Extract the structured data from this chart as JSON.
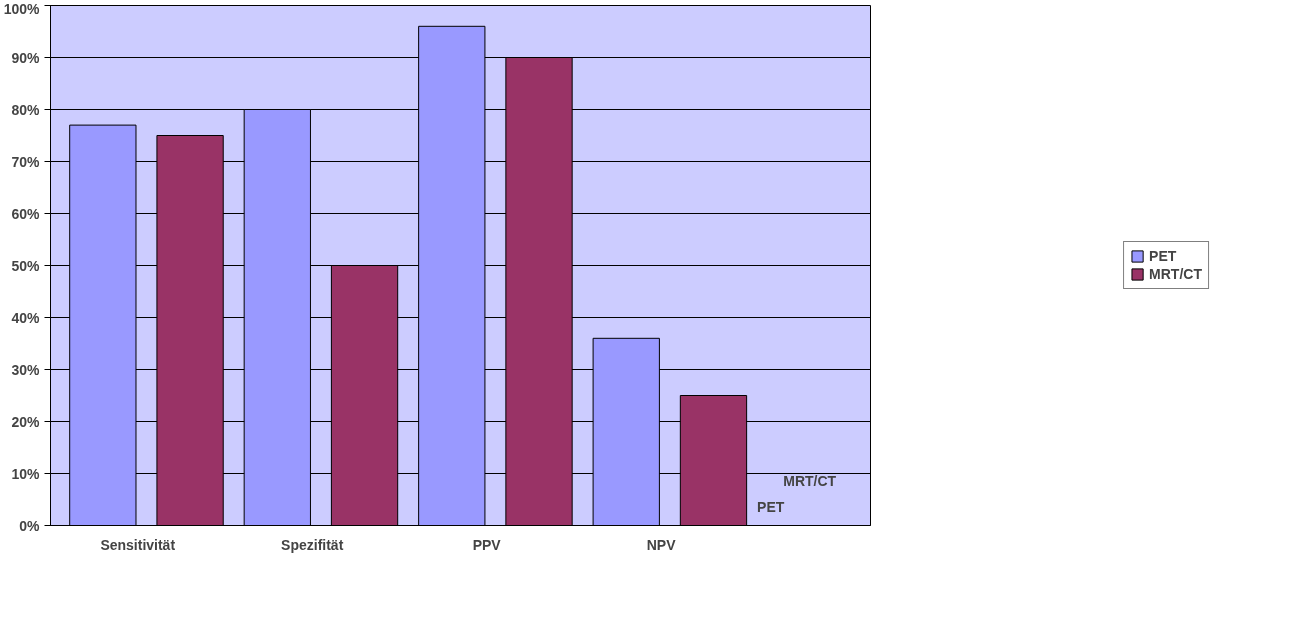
{
  "chart_data": {
    "type": "bar",
    "categories": [
      "Sensitivität",
      "Spezifität",
      "PPV",
      "NPV"
    ],
    "series": [
      {
        "name": "PET",
        "color": "#9999ff",
        "values": [
          77,
          80,
          96,
          36
        ]
      },
      {
        "name": "MRT/CT",
        "color": "#993366",
        "values": [
          75,
          50,
          90,
          25
        ]
      }
    ],
    "ylim": [
      0,
      100
    ],
    "yticks": [
      {
        "value": 0,
        "label": "0%"
      },
      {
        "value": 10,
        "label": "10%"
      },
      {
        "value": 20,
        "label": "20%"
      },
      {
        "value": 30,
        "label": "30%"
      },
      {
        "value": 40,
        "label": "40%"
      },
      {
        "value": 50,
        "label": "50%"
      },
      {
        "value": 60,
        "label": "60%"
      },
      {
        "value": 70,
        "label": "70%"
      },
      {
        "value": 80,
        "label": "80%"
      },
      {
        "value": 90,
        "label": "90%"
      },
      {
        "value": 100,
        "label": "100%"
      }
    ],
    "grid": "y",
    "legend": "right",
    "annotations": [
      "PET",
      "MRT/CT"
    ]
  }
}
